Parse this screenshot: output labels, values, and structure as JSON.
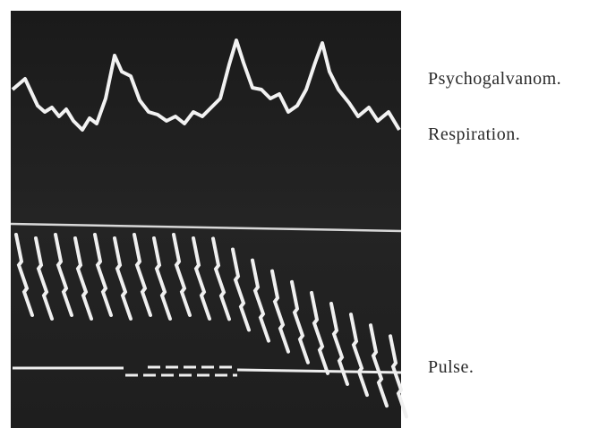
{
  "labels": {
    "psychogalvanometer": "Psychogalvanom.",
    "respiration": "Respiration.",
    "pulse": "Pulse."
  }
}
